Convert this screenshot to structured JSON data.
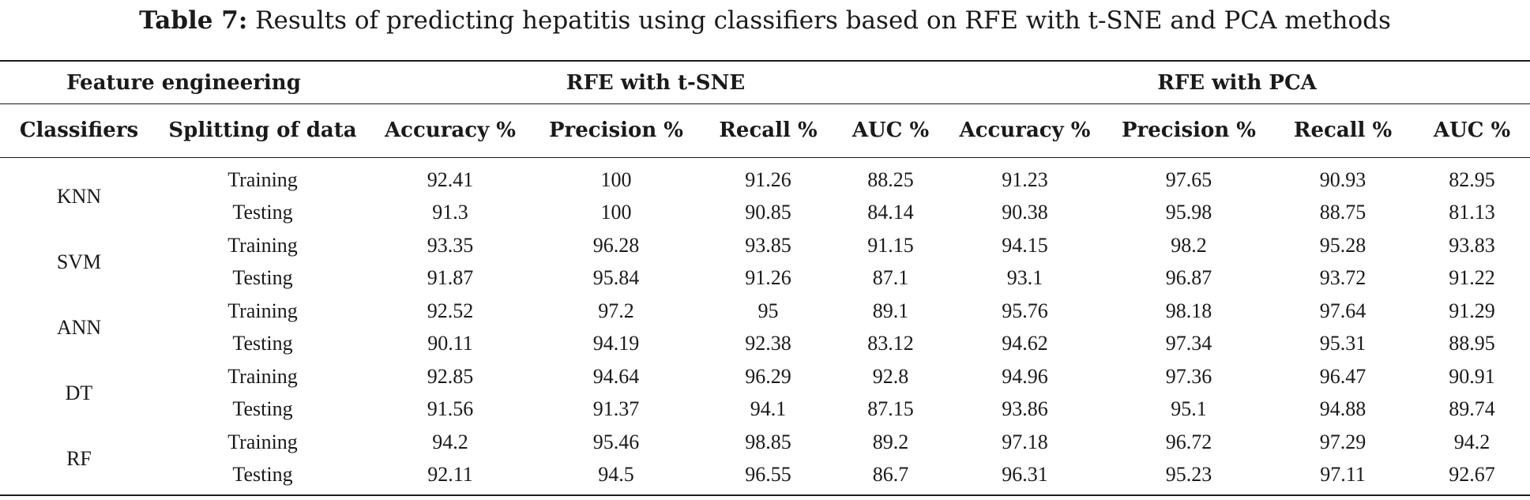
{
  "caption": {
    "label": "Table 7:",
    "text": "Results of predicting hepatitis using classifiers based on RFE with t-SNE and PCA methods"
  },
  "group_headers": {
    "feature_engineering": "Feature engineering",
    "group1": "RFE with t-SNE",
    "group2": "RFE with PCA"
  },
  "columns": [
    "Classifiers",
    "Splitting of data",
    "Accuracy %",
    "Precision %",
    "Recall %",
    "AUC %",
    "Accuracy %",
    "Precision %",
    "Recall %",
    "AUC %"
  ],
  "rows": [
    {
      "classifier": "KNN",
      "split": "Training",
      "tsne": [
        "92.41",
        "100",
        "91.26",
        "88.25"
      ],
      "pca": [
        "91.23",
        "97.65",
        "90.93",
        "82.95"
      ]
    },
    {
      "classifier": "",
      "split": "Testing",
      "tsne": [
        "91.3",
        "100",
        "90.85",
        "84.14"
      ],
      "pca": [
        "90.38",
        "95.98",
        "88.75",
        "81.13"
      ]
    },
    {
      "classifier": "SVM",
      "split": "Training",
      "tsne": [
        "93.35",
        "96.28",
        "93.85",
        "91.15"
      ],
      "pca": [
        "94.15",
        "98.2",
        "95.28",
        "93.83"
      ]
    },
    {
      "classifier": "",
      "split": "Testing",
      "tsne": [
        "91.87",
        "95.84",
        "91.26",
        "87.1"
      ],
      "pca": [
        "93.1",
        "96.87",
        "93.72",
        "91.22"
      ]
    },
    {
      "classifier": "ANN",
      "split": "Training",
      "tsne": [
        "92.52",
        "97.2",
        "95",
        "89.1"
      ],
      "pca": [
        "95.76",
        "98.18",
        "97.64",
        "91.29"
      ]
    },
    {
      "classifier": "",
      "split": "Testing",
      "tsne": [
        "90.11",
        "94.19",
        "92.38",
        "83.12"
      ],
      "pca": [
        "94.62",
        "97.34",
        "95.31",
        "88.95"
      ]
    },
    {
      "classifier": "DT",
      "split": "Training",
      "tsne": [
        "92.85",
        "94.64",
        "96.29",
        "92.8"
      ],
      "pca": [
        "94.96",
        "97.36",
        "96.47",
        "90.91"
      ]
    },
    {
      "classifier": "",
      "split": "Testing",
      "tsne": [
        "91.56",
        "91.37",
        "94.1",
        "87.15"
      ],
      "pca": [
        "93.86",
        "95.1",
        "94.88",
        "89.74"
      ]
    },
    {
      "classifier": "RF",
      "split": "Training",
      "tsne": [
        "94.2",
        "95.46",
        "98.85",
        "89.2"
      ],
      "pca": [
        "97.18",
        "96.72",
        "97.29",
        "94.2"
      ]
    },
    {
      "classifier": "",
      "split": "Testing",
      "tsne": [
        "92.11",
        "94.5",
        "96.55",
        "86.7"
      ],
      "pca": [
        "96.31",
        "95.23",
        "97.11",
        "92.67"
      ]
    }
  ]
}
